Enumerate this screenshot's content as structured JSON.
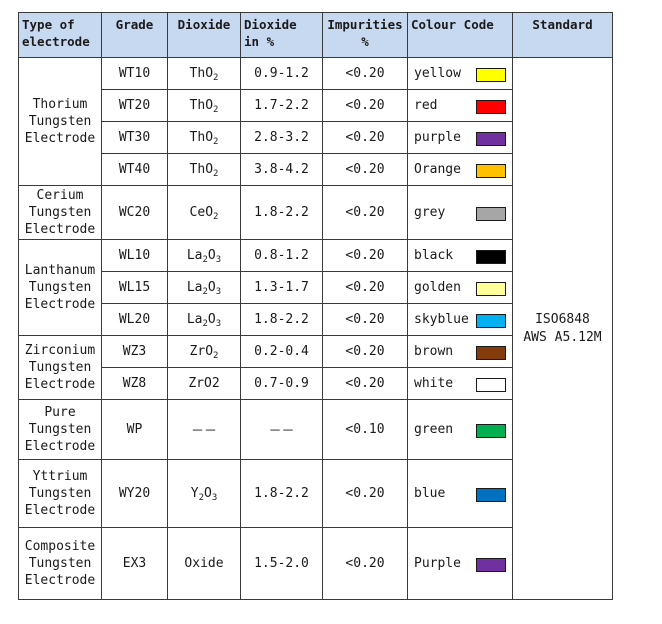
{
  "headers": {
    "type": "Type of electrode",
    "grade": "Grade",
    "dioxide": "Dioxide",
    "pct": "Dioxide in %",
    "imp": "Impurities %",
    "colour": "Colour Code",
    "standard": "Standard"
  },
  "types": {
    "thorium": "Thorium Tungsten Electrode",
    "cerium": "Cerium Tungsten Electrode",
    "lanthanum": "Lanthanum Tungsten Electrode",
    "zirconium": "Zirconium Tungsten Electrode",
    "pure": "Pure Tungsten Electrode",
    "yttrium": "Yttrium Tungsten Electrode",
    "composite": "Composite Tungsten Electrode"
  },
  "rows": [
    {
      "grade": "WT10",
      "dioxide_base": "ThO",
      "dioxide_sub": "2",
      "pct": "0.9-1.2",
      "imp": "<0.20",
      "colour": "yellow",
      "swatch": "#ffff00"
    },
    {
      "grade": "WT20",
      "dioxide_base": "ThO",
      "dioxide_sub": "2",
      "pct": "1.7-2.2",
      "imp": "<0.20",
      "colour": "red",
      "swatch": "#ff0000"
    },
    {
      "grade": "WT30",
      "dioxide_base": "ThO",
      "dioxide_sub": "2",
      "pct": "2.8-3.2",
      "imp": "<0.20",
      "colour": "purple",
      "swatch": "#7030a0"
    },
    {
      "grade": "WT40",
      "dioxide_base": "ThO",
      "dioxide_sub": "2",
      "pct": "3.8-4.2",
      "imp": "<0.20",
      "colour": "Orange",
      "swatch": "#ffc000"
    },
    {
      "grade": "WC20",
      "dioxide_base": "CeO",
      "dioxide_sub": "2",
      "pct": "1.8-2.2",
      "imp": "<0.20",
      "colour": "grey",
      "swatch": "#a6a6a6"
    },
    {
      "grade": "WL10",
      "dioxide_base": "La",
      "dioxide_sub": "2",
      "dioxide_base2": "O",
      "dioxide_sub2": "3",
      "pct": "0.8-1.2",
      "imp": "<0.20",
      "colour": "black",
      "swatch": "#000000"
    },
    {
      "grade": "WL15",
      "dioxide_base": "La",
      "dioxide_sub": "2",
      "dioxide_base2": "O",
      "dioxide_sub2": "3",
      "pct": "1.3-1.7",
      "imp": "<0.20",
      "colour": "golden",
      "swatch": "#ffff99"
    },
    {
      "grade": "WL20",
      "dioxide_base": "La",
      "dioxide_sub": "2",
      "dioxide_base2": "O",
      "dioxide_sub2": "3",
      "pct": "1.8-2.2",
      "imp": "<0.20",
      "colour": "skyblue",
      "swatch": "#00b0f0"
    },
    {
      "grade": "WZ3",
      "dioxide_base": "ZrO",
      "dioxide_sub": "2",
      "pct": "0.2-0.4",
      "imp": "<0.20",
      "colour": "brown",
      "swatch": "#843c0c"
    },
    {
      "grade": "WZ8",
      "dioxide_base": "ZrO2",
      "dioxide_sub": "",
      "pct": "0.7-0.9",
      "imp": "<0.20",
      "colour": "white",
      "swatch": "#ffffff"
    },
    {
      "grade": "WP",
      "dioxide_base": "－－",
      "dioxide_sub": "",
      "pct": "－－",
      "imp": "<0.10",
      "colour": "green",
      "swatch": "#00b050"
    },
    {
      "grade": "WY20",
      "dioxide_base": "Y",
      "dioxide_sub": "2",
      "dioxide_base2": "O",
      "dioxide_sub2": "3",
      "pct": "1.8-2.2",
      "imp": "<0.20",
      "colour": "blue",
      "swatch": "#0070c0"
    },
    {
      "grade": "EX3",
      "dioxide_base": "Oxide",
      "dioxide_sub": "",
      "pct": "1.5-2.0",
      "imp": "<0.20",
      "colour": "Purple",
      "swatch": "#7030a0"
    }
  ],
  "standard": {
    "line1": "ISO6848",
    "line2": "AWS A5.12M"
  }
}
